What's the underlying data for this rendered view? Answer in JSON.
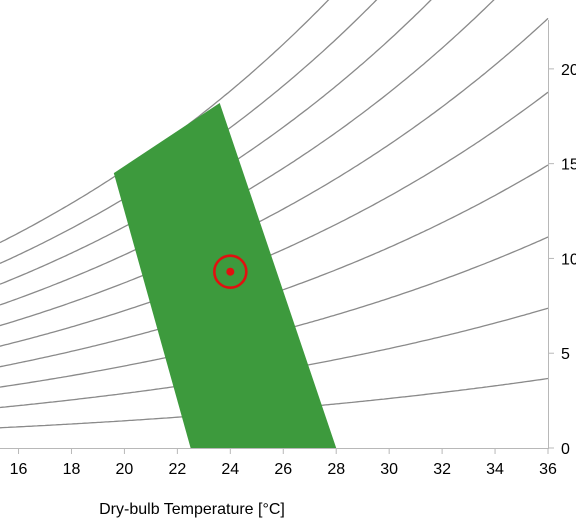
{
  "chart_data": {
    "type": "line",
    "xlabel": "Dry-bulb Temperature [°C]",
    "ylabel": "",
    "x_ticks": [
      "16",
      "18",
      "20",
      "22",
      "24",
      "26",
      "28",
      "30",
      "32",
      "34",
      "36"
    ],
    "y_ticks": [
      "0",
      "5",
      "10",
      "15",
      "20"
    ],
    "xlim": [
      15.3,
      36
    ],
    "ylim": [
      0,
      23
    ],
    "grid": false,
    "series": [
      {
        "values_rh_percent": [
          10,
          20,
          30,
          40,
          50,
          60,
          70,
          80,
          90,
          100
        ]
      }
    ],
    "comfort_zone": {
      "polygon": [
        [
          22.5,
          0
        ],
        [
          28.0,
          0
        ],
        [
          23.6,
          18.2
        ],
        [
          19.6,
          14.5
        ]
      ],
      "color": "#3d9a3d"
    },
    "current_point": {
      "x": 24.0,
      "y": 9.3,
      "color": "#e11010"
    }
  }
}
